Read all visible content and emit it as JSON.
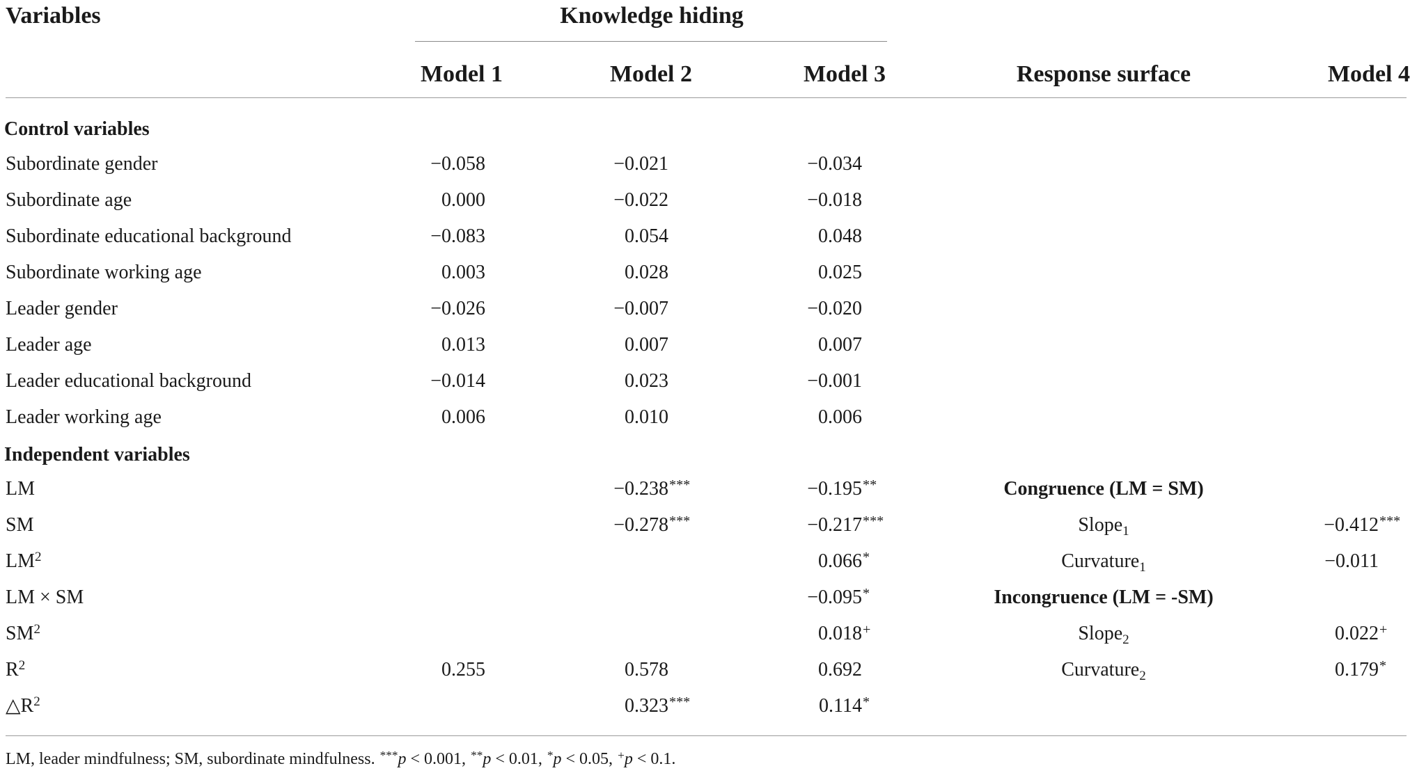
{
  "header": {
    "variables": "Variables",
    "knowledge_hiding": "Knowledge hiding",
    "model1": "Model 1",
    "model2": "Model 2",
    "model3": "Model 3",
    "response_surface": "Response surface",
    "model4": "Model 4"
  },
  "sections": {
    "control": "Control variables",
    "independent": "Independent variables"
  },
  "rows": [
    {
      "label": "Subordinate gender",
      "m1": "−0.058",
      "m2": "−0.021",
      "m3": "−0.034"
    },
    {
      "label": "Subordinate age",
      "m1": "0.000",
      "m2": "−0.022",
      "m3": "−0.018"
    },
    {
      "label": "Subordinate educational background",
      "m1": "−0.083",
      "m2": "0.054",
      "m3": "0.048"
    },
    {
      "label": "Subordinate working age",
      "m1": "0.003",
      "m2": "0.028",
      "m3": "0.025"
    },
    {
      "label": "Leader gender",
      "m1": "−0.026",
      "m2": "−0.007",
      "m3": "−0.020"
    },
    {
      "label": "Leader age",
      "m1": "0.013",
      "m2": "0.007",
      "m3": "0.007"
    },
    {
      "label": "Leader educational background",
      "m1": "−0.014",
      "m2": "0.023",
      "m3": "−0.001"
    },
    {
      "label": "Leader working age",
      "m1": "0.006",
      "m2": "0.010",
      "m3": "0.006"
    }
  ],
  "indep": [
    {
      "label": "LM",
      "label_sup": "",
      "m1": "",
      "m2": "−0.238",
      "m2_sig": "***",
      "m3": "−0.195",
      "m3_sig": "**",
      "rs_base": "Congruence (LM = SM)",
      "rs_sub": "",
      "rs_bold": true,
      "m4": "",
      "m4_sig": ""
    },
    {
      "label": "SM",
      "label_sup": "",
      "m1": "",
      "m2": "−0.278",
      "m2_sig": "***",
      "m3": "−0.217",
      "m3_sig": "***",
      "rs_base": "Slope",
      "rs_sub": "1",
      "rs_bold": false,
      "m4": "−0.412",
      "m4_sig": "***"
    },
    {
      "label": "LM",
      "label_sup": "2",
      "m1": "",
      "m2": "",
      "m2_sig": "",
      "m3": "0.066",
      "m3_sig": "*",
      "rs_base": "Curvature",
      "rs_sub": "1",
      "rs_bold": false,
      "m4": "−0.011",
      "m4_sig": ""
    },
    {
      "label": "LM × SM",
      "label_sup": "",
      "m1": "",
      "m2": "",
      "m2_sig": "",
      "m3": "−0.095",
      "m3_sig": "*",
      "rs_base": "Incongruence (LM = -SM)",
      "rs_sub": "",
      "rs_bold": true,
      "m4": "",
      "m4_sig": ""
    },
    {
      "label": "SM",
      "label_sup": "2",
      "m1": "",
      "m2": "",
      "m2_sig": "",
      "m3": "0.018",
      "m3_sig": "+",
      "rs_base": "Slope",
      "rs_sub": "2",
      "rs_bold": false,
      "m4": "0.022",
      "m4_sig": "+"
    },
    {
      "label": "R",
      "label_sup": "2",
      "m1": "0.255",
      "m2": "0.578",
      "m2_sig": "",
      "m3": "0.692",
      "m3_sig": "",
      "rs_base": "Curvature",
      "rs_sub": "2",
      "rs_bold": false,
      "m4": "0.179",
      "m4_sig": "*"
    },
    {
      "label": "△R",
      "label_sup": "2",
      "m1": "",
      "m2": "0.323",
      "m2_sig": "***",
      "m3": "0.114",
      "m3_sig": "*",
      "rs_base": "",
      "rs_sub": "",
      "rs_bold": false,
      "m4": "",
      "m4_sig": ""
    }
  ],
  "footnote": {
    "abbrev": "LM, leader mindfulness; SM, subordinate mindfulness. ",
    "s1": "***",
    "p1": "p",
    "t1": " < 0.001, ",
    "s2": "**",
    "p2": "p",
    "t2": " < 0.01, ",
    "s3": "*",
    "p3": "p",
    "t3": " < 0.05, ",
    "s4": "+",
    "p4": "p",
    "t4": " < 0.1."
  }
}
